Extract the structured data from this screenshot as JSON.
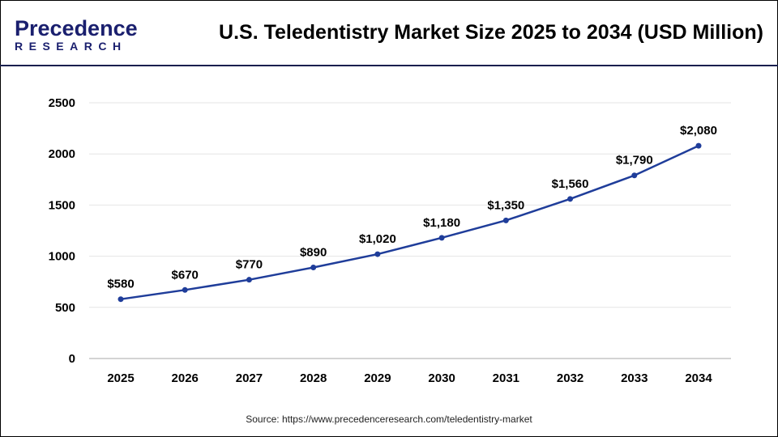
{
  "header": {
    "logo_line1": "Precedence",
    "logo_line2": "RESEARCH",
    "title": "U.S. Teledentistry Market Size 2025 to 2034 (USD Million)"
  },
  "source": "Source: https://www.precedenceresearch.com/teledentistry-market",
  "chart_data": {
    "type": "line",
    "title": "U.S. Teledentistry Market Size 2025 to 2034 (USD Million)",
    "categories": [
      "2025",
      "2026",
      "2027",
      "2028",
      "2029",
      "2030",
      "2031",
      "2032",
      "2033",
      "2034"
    ],
    "values": [
      580,
      670,
      770,
      890,
      1020,
      1180,
      1350,
      1560,
      1790,
      2080
    ],
    "data_labels": [
      "$580",
      "$670",
      "$770",
      "$890",
      "$1,020",
      "$1,180",
      "$1,350",
      "$1,560",
      "$1,790",
      "$2,080"
    ],
    "yticks": [
      "0",
      "500",
      "1000",
      "1500",
      "2000",
      "2500"
    ],
    "ylim": [
      0,
      2500
    ],
    "grid": true,
    "line_color": "#1f3d9a"
  }
}
